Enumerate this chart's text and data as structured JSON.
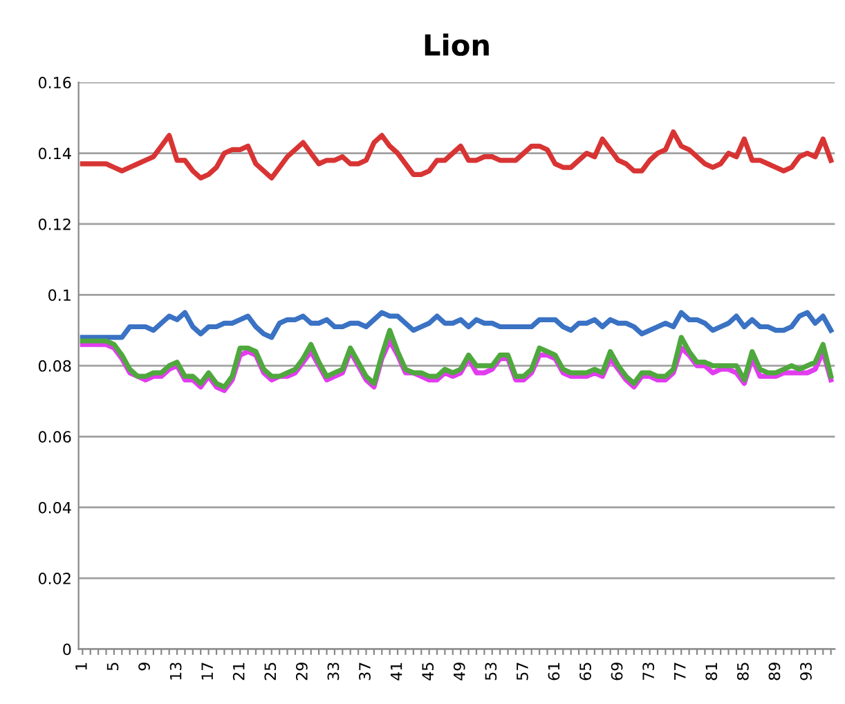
{
  "chart_data": {
    "type": "line",
    "title": "Lion",
    "categories": [
      "1",
      null,
      null,
      null,
      "5",
      null,
      null,
      null,
      "9",
      null,
      null,
      null,
      "13",
      null,
      null,
      null,
      "17",
      null,
      null,
      null,
      "21",
      null,
      null,
      null,
      "25",
      null,
      null,
      null,
      "29",
      null,
      null,
      null,
      "33",
      null,
      null,
      null,
      "37",
      null,
      null,
      null,
      "41",
      null,
      null,
      null,
      "45",
      null,
      null,
      null,
      "49",
      null,
      null,
      null,
      "53",
      null,
      null,
      null,
      "57",
      null,
      null,
      null,
      "61",
      null,
      null,
      null,
      "65",
      null,
      null,
      null,
      "69",
      null,
      null,
      null,
      "73",
      null,
      null,
      null,
      "77",
      null,
      null,
      null,
      "81",
      null,
      null,
      null,
      "85",
      null,
      null,
      null,
      "89",
      null,
      null,
      null,
      "93",
      null,
      null,
      null
    ],
    "series": [
      {
        "color": "#3a72c4",
        "values": [
          0.088,
          0.088,
          0.088,
          0.088,
          0.088,
          0.088,
          0.091,
          0.091,
          0.091,
          0.09,
          0.092,
          0.094,
          0.093,
          0.095,
          0.091,
          0.089,
          0.091,
          0.091,
          0.092,
          0.092,
          0.093,
          0.094,
          0.091,
          0.089,
          0.088,
          0.092,
          0.093,
          0.093,
          0.094,
          0.092,
          0.092,
          0.093,
          0.091,
          0.091,
          0.092,
          0.092,
          0.091,
          0.093,
          0.095,
          0.094,
          0.094,
          0.092,
          0.09,
          0.091,
          0.092,
          0.094,
          0.092,
          0.092,
          0.093,
          0.091,
          0.093,
          0.092,
          0.092,
          0.091,
          0.091,
          0.091,
          0.091,
          0.091,
          0.093,
          0.093,
          0.093,
          0.091,
          0.09,
          0.092,
          0.092,
          0.093,
          0.091,
          0.093,
          0.092,
          0.092,
          0.091,
          0.089,
          0.09,
          0.091,
          0.092,
          0.091,
          0.095,
          0.093,
          0.093,
          0.092,
          0.09,
          0.091,
          0.092,
          0.094,
          0.091,
          0.093,
          0.091,
          0.091,
          0.09,
          0.09,
          0.091,
          0.094,
          0.095,
          0.092,
          0.094,
          0.09
        ]
      },
      {
        "color": "#d83434",
        "values": [
          0.137,
          0.137,
          0.137,
          0.137,
          0.136,
          0.135,
          0.136,
          0.137,
          0.138,
          0.139,
          0.142,
          0.145,
          0.138,
          0.138,
          0.135,
          0.133,
          0.134,
          0.136,
          0.14,
          0.141,
          0.141,
          0.142,
          0.137,
          0.135,
          0.133,
          0.136,
          0.139,
          0.141,
          0.143,
          0.14,
          0.137,
          0.138,
          0.138,
          0.139,
          0.137,
          0.137,
          0.138,
          0.143,
          0.145,
          0.142,
          0.14,
          0.137,
          0.134,
          0.134,
          0.135,
          0.138,
          0.138,
          0.14,
          0.142,
          0.138,
          0.138,
          0.139,
          0.139,
          0.138,
          0.138,
          0.138,
          0.14,
          0.142,
          0.142,
          0.141,
          0.137,
          0.136,
          0.136,
          0.138,
          0.14,
          0.139,
          0.144,
          0.141,
          0.138,
          0.137,
          0.135,
          0.135,
          0.138,
          0.14,
          0.141,
          0.146,
          0.142,
          0.141,
          0.139,
          0.137,
          0.136,
          0.137,
          0.14,
          0.139,
          0.144,
          0.138,
          0.138,
          0.137,
          0.136,
          0.135,
          0.136,
          0.139,
          0.14,
          0.139,
          0.144,
          0.138
        ]
      },
      {
        "color": "#e23cf0",
        "values": [
          0.086,
          0.086,
          0.086,
          0.086,
          0.085,
          0.082,
          0.078,
          0.077,
          0.076,
          0.077,
          0.077,
          0.079,
          0.08,
          0.076,
          0.076,
          0.074,
          0.077,
          0.074,
          0.073,
          0.076,
          0.083,
          0.084,
          0.083,
          0.078,
          0.076,
          0.077,
          0.077,
          0.078,
          0.081,
          0.084,
          0.08,
          0.076,
          0.077,
          0.078,
          0.084,
          0.08,
          0.076,
          0.074,
          0.082,
          0.087,
          0.083,
          0.078,
          0.078,
          0.077,
          0.076,
          0.076,
          0.078,
          0.077,
          0.078,
          0.082,
          0.078,
          0.078,
          0.079,
          0.082,
          0.082,
          0.076,
          0.076,
          0.078,
          0.083,
          0.083,
          0.082,
          0.078,
          0.077,
          0.077,
          0.077,
          0.078,
          0.077,
          0.082,
          0.079,
          0.076,
          0.074,
          0.077,
          0.077,
          0.076,
          0.076,
          0.078,
          0.085,
          0.083,
          0.08,
          0.08,
          0.078,
          0.079,
          0.079,
          0.078,
          0.075,
          0.082,
          0.077,
          0.077,
          0.077,
          0.078,
          0.078,
          0.078,
          0.078,
          0.079,
          0.084,
          0.076
        ]
      },
      {
        "color": "#4fa83d",
        "values": [
          0.087,
          0.087,
          0.087,
          0.087,
          0.086,
          0.083,
          0.079,
          0.077,
          0.077,
          0.078,
          0.078,
          0.08,
          0.081,
          0.077,
          0.077,
          0.075,
          0.078,
          0.075,
          0.074,
          0.077,
          0.085,
          0.085,
          0.084,
          0.079,
          0.077,
          0.077,
          0.078,
          0.079,
          0.082,
          0.086,
          0.081,
          0.077,
          0.078,
          0.079,
          0.085,
          0.081,
          0.077,
          0.075,
          0.083,
          0.09,
          0.084,
          0.079,
          0.078,
          0.078,
          0.077,
          0.077,
          0.079,
          0.078,
          0.079,
          0.083,
          0.08,
          0.08,
          0.08,
          0.083,
          0.083,
          0.077,
          0.077,
          0.079,
          0.085,
          0.084,
          0.083,
          0.079,
          0.078,
          0.078,
          0.078,
          0.079,
          0.078,
          0.084,
          0.08,
          0.077,
          0.075,
          0.078,
          0.078,
          0.077,
          0.077,
          0.079,
          0.088,
          0.084,
          0.081,
          0.081,
          0.08,
          0.08,
          0.08,
          0.08,
          0.076,
          0.084,
          0.079,
          0.078,
          0.078,
          0.079,
          0.08,
          0.079,
          0.08,
          0.081,
          0.086,
          0.077
        ]
      }
    ],
    "ylim": [
      0,
      0.16
    ],
    "yticks": [
      0,
      0.02,
      0.04,
      0.06,
      0.08,
      {
        "value": 0.1,
        "label": "0.1"
      },
      0.12,
      0.14,
      0.16
    ],
    "grid": "y",
    "marker": "none",
    "line_style": "solid"
  }
}
